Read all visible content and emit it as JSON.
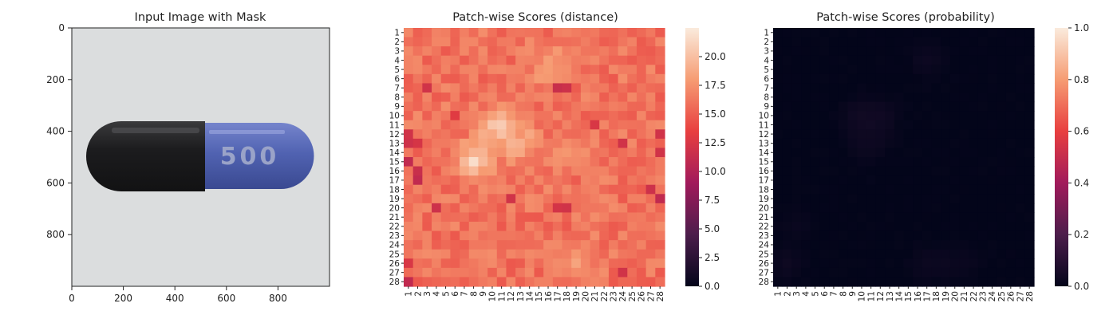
{
  "chart_data": [
    {
      "type": "image",
      "title": "Input Image with Mask",
      "xlabel": "",
      "ylabel": "",
      "xlim": [
        0,
        1000
      ],
      "ylim": [
        1000,
        0
      ],
      "xticks": [
        "0",
        "200",
        "400",
        "600",
        "800"
      ],
      "yticks": [
        "0",
        "200",
        "400",
        "600",
        "800"
      ],
      "capsule": {
        "center_y": 490,
        "left_x": 80,
        "joint_x": 515,
        "right_x": 935,
        "half_height": 130,
        "left_color": "#1b1b1d",
        "right_color": "#4f62b0",
        "printed_text": "500"
      },
      "background_color": "#d7dad8"
    },
    {
      "type": "heatmap",
      "title": "Patch-wise Scores (distance)",
      "xlabel": "",
      "ylabel": "",
      "rows": 28,
      "cols": 28,
      "xticklabels": [
        "1",
        "2",
        "3",
        "4",
        "5",
        "6",
        "7",
        "8",
        "9",
        "10",
        "11",
        "12",
        "13",
        "14",
        "15",
        "16",
        "17",
        "18",
        "19",
        "20",
        "21",
        "22",
        "23",
        "24",
        "25",
        "26",
        "27",
        "28"
      ],
      "yticklabels": [
        "1",
        "2",
        "3",
        "4",
        "5",
        "6",
        "7",
        "8",
        "9",
        "10",
        "11",
        "12",
        "13",
        "14",
        "15",
        "16",
        "17",
        "18",
        "19",
        "20",
        "21",
        "22",
        "23",
        "24",
        "25",
        "26",
        "27",
        "28"
      ],
      "colorbar": {
        "min": 0,
        "max": 22.5,
        "ticks": [
          "0.0",
          "2.5",
          "5.0",
          "7.5",
          "10.0",
          "12.5",
          "15.0",
          "17.5",
          "20.0"
        ]
      },
      "base_value": 16.0,
      "peaks": [
        {
          "row": 11,
          "col": 11,
          "value": 21.5
        },
        {
          "row": 15,
          "col": 8,
          "value": 22.0
        },
        {
          "row": 13,
          "col": 13,
          "value": 20.0
        },
        {
          "row": 12,
          "col": 10,
          "value": 20.5
        },
        {
          "row": 4,
          "col": 17,
          "value": 19.0
        },
        {
          "row": 5,
          "col": 16,
          "value": 18.5
        },
        {
          "row": 26,
          "col": 19,
          "value": 18.5
        },
        {
          "row": 14,
          "col": 18,
          "value": 18.5
        }
      ],
      "lows": [
        {
          "row": 7,
          "col": 17,
          "value": 11.5
        },
        {
          "row": 7,
          "col": 18,
          "value": 11.8
        },
        {
          "row": 7,
          "col": 3,
          "value": 12.0
        },
        {
          "row": 12,
          "col": 1,
          "value": 12.0
        },
        {
          "row": 13,
          "col": 1,
          "value": 11.8
        },
        {
          "row": 13,
          "col": 2,
          "value": 12.3
        },
        {
          "row": 15,
          "col": 1,
          "value": 11.0
        },
        {
          "row": 16,
          "col": 2,
          "value": 11.5
        },
        {
          "row": 17,
          "col": 2,
          "value": 11.0
        },
        {
          "row": 20,
          "col": 4,
          "value": 11.8
        },
        {
          "row": 19,
          "col": 12,
          "value": 12.0
        },
        {
          "row": 20,
          "col": 17,
          "value": 12.2
        },
        {
          "row": 20,
          "col": 18,
          "value": 12.0
        },
        {
          "row": 19,
          "col": 28,
          "value": 11.0
        },
        {
          "row": 18,
          "col": 27,
          "value": 11.8
        },
        {
          "row": 13,
          "col": 24,
          "value": 12.0
        },
        {
          "row": 28,
          "col": 1,
          "value": 11.0
        },
        {
          "row": 27,
          "col": 24,
          "value": 12.0
        },
        {
          "row": 26,
          "col": 1,
          "value": 12.5
        },
        {
          "row": 12,
          "col": 28,
          "value": 12.0
        },
        {
          "row": 14,
          "col": 28,
          "value": 12.0
        },
        {
          "row": 11,
          "col": 21,
          "value": 12.5
        },
        {
          "row": 10,
          "col": 6,
          "value": 13.0
        }
      ]
    },
    {
      "type": "heatmap",
      "title": "Patch-wise Scores (probability)",
      "xlabel": "",
      "ylabel": "",
      "rows": 28,
      "cols": 28,
      "xticklabels": [
        "1",
        "2",
        "3",
        "4",
        "5",
        "6",
        "7",
        "8",
        "9",
        "10",
        "11",
        "12",
        "13",
        "14",
        "15",
        "16",
        "17",
        "18",
        "19",
        "20",
        "21",
        "22",
        "23",
        "24",
        "25",
        "26",
        "27",
        "28"
      ],
      "yticklabels": [
        "1",
        "2",
        "3",
        "4",
        "5",
        "6",
        "7",
        "8",
        "9",
        "10",
        "11",
        "12",
        "13",
        "14",
        "15",
        "16",
        "17",
        "18",
        "19",
        "20",
        "21",
        "22",
        "23",
        "24",
        "25",
        "26",
        "27",
        "28"
      ],
      "colorbar": {
        "min": 0,
        "max": 1.0,
        "ticks": [
          "0.0",
          "0.2",
          "0.4",
          "0.6",
          "0.8",
          "1.0"
        ]
      },
      "base_value": 0.0,
      "peaks": [
        {
          "row": 10,
          "col": 10,
          "value": 0.04
        },
        {
          "row": 11,
          "col": 11,
          "value": 0.04
        },
        {
          "row": 10,
          "col": 12,
          "value": 0.035
        },
        {
          "row": 12,
          "col": 10,
          "value": 0.03
        },
        {
          "row": 13,
          "col": 11,
          "value": 0.03
        },
        {
          "row": 4,
          "col": 17,
          "value": 0.03
        },
        {
          "row": 26,
          "col": 2,
          "value": 0.03
        },
        {
          "row": 26,
          "col": 17,
          "value": 0.025
        },
        {
          "row": 26,
          "col": 19,
          "value": 0.025
        },
        {
          "row": 22,
          "col": 3,
          "value": 0.02
        },
        {
          "row": 26,
          "col": 21,
          "value": 0.02
        }
      ]
    }
  ]
}
